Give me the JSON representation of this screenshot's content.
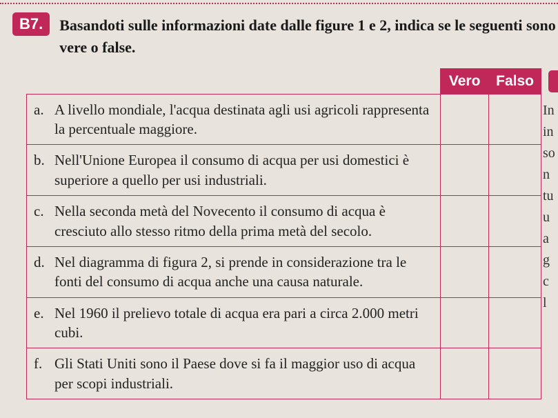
{
  "exercise": {
    "number": "B7.",
    "instruction": "Basandoti sulle informazioni date dalle figure 1 e 2, indica se le seguenti sono vere o false."
  },
  "table": {
    "headers": {
      "vero": "Vero",
      "falso": "Falso"
    },
    "rows": [
      {
        "letter": "a.",
        "text": "A livello mondiale, l'acqua destinata agli usi agricoli rappresenta la percentuale maggiore."
      },
      {
        "letter": "b.",
        "text": "Nell'Unione Europea il consumo di acqua per usi domestici è superiore a quello per usi industriali."
      },
      {
        "letter": "c.",
        "text": "Nella seconda metà del Novecento il consumo di acqua è cresciuto allo stesso ritmo della prima metà del secolo."
      },
      {
        "letter": "d.",
        "text": "Nel diagramma di figura 2, si prende in considerazione tra le fonti del consumo di acqua anche una causa naturale."
      },
      {
        "letter": "e.",
        "text": "Nel 1960 il prelievo totale di acqua era pari a circa 2.000 metri cubi."
      },
      {
        "letter": "f.",
        "text": "Gli Stati Uniti sono il Paese dove si fa il maggior uso di acqua per scopi industriali."
      }
    ]
  },
  "right_fragments": [
    "In",
    "in",
    "so",
    "n",
    "tu",
    "u",
    "a",
    "g",
    "c",
    "l"
  ],
  "colors": {
    "accent": "#c0285a",
    "page_bg": "#e8e4dd",
    "text": "#1a1a1a"
  }
}
